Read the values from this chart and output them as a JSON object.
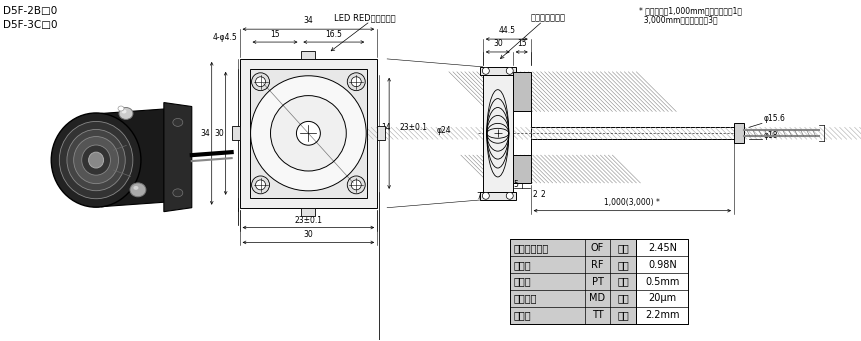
{
  "title_lines": [
    "D5F-2B□0",
    "D5F-3C□0"
  ],
  "bg_color": "#ffffff",
  "text_color": "#000000",
  "table_bg": "#cccccc",
  "table_data": [
    [
      "必要的动作力",
      "OF",
      "最大",
      "2.45N"
    ],
    [
      "恢复力",
      "RF",
      "最小",
      "0.98N"
    ],
    [
      "预行程",
      "PT",
      "最大",
      "0.5mm"
    ],
    [
      "应差距离",
      "MD",
      "最大",
      "20μm"
    ],
    [
      "总行程",
      "TT",
      "最小",
      "2.2mm"
    ]
  ],
  "note_line1": "* 软线长度为1,000mm型号中口内为1，",
  "note_line2": "  3,000mm型号中口内为3。",
  "label_led": "LED RED动作显示灯",
  "label_sensor": "测试部陶瓷尖片"
}
